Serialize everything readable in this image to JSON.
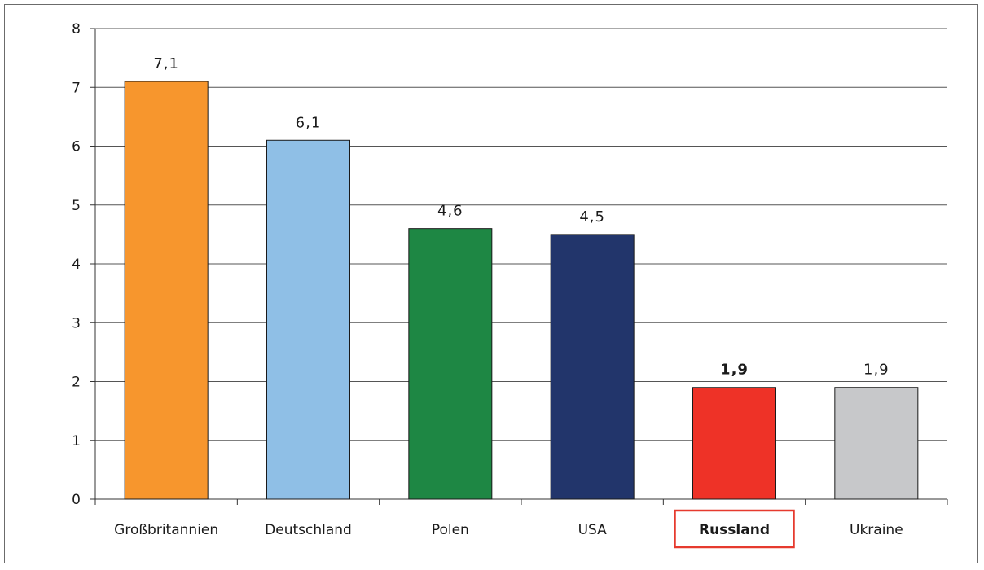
{
  "chart_data": {
    "type": "bar",
    "categories": [
      "Großbritannien",
      "Deutschland",
      "Polen",
      "USA",
      "Russland",
      "Ukraine"
    ],
    "values": [
      7.1,
      6.1,
      4.6,
      4.5,
      1.9,
      1.9
    ],
    "value_labels": [
      "7,1",
      "6,1",
      "4,6",
      "4,5",
      "1,9",
      "1,9"
    ],
    "colors": [
      "#f7962d",
      "#8fbfe6",
      "#1e8744",
      "#22356b",
      "#ee3227",
      "#c7c8ca"
    ],
    "highlight_category": "Russland",
    "highlight_color": "#e63a2e",
    "ylim": [
      0,
      8
    ],
    "yticks": [
      "0",
      "1",
      "2",
      "3",
      "4",
      "5",
      "6",
      "7",
      "8"
    ],
    "grid": true,
    "title": "",
    "xlabel": "",
    "ylabel": ""
  }
}
